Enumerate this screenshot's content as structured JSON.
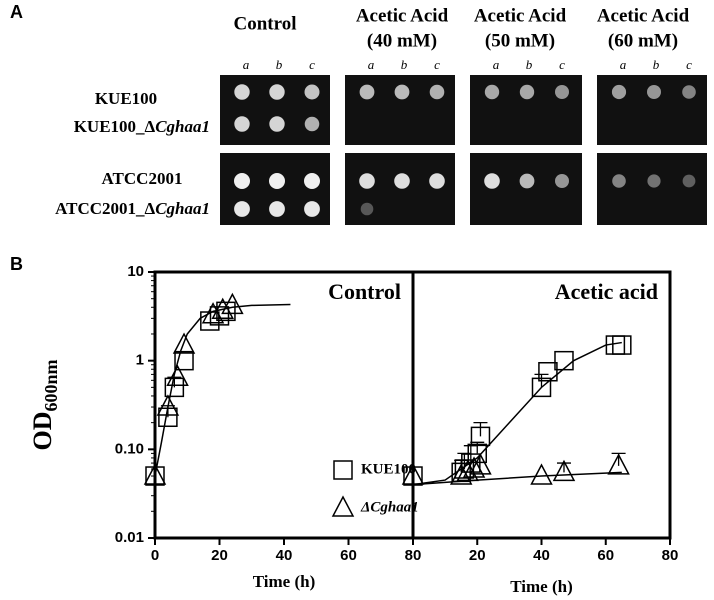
{
  "panel_a": {
    "label": "A",
    "columns": [
      {
        "title": "Control"
      },
      {
        "title": "Acetic Acid",
        "subtitle": "(40 mM)"
      },
      {
        "title": "Acetic Acid",
        "subtitle": "(50 mM)"
      },
      {
        "title": "Acetic Acid",
        "subtitle": "(60 mM)"
      }
    ],
    "dilutions": [
      "a",
      "b",
      "c"
    ],
    "rows": [
      {
        "name": "KUE100"
      },
      {
        "name": "KUE100_Δ",
        "italic": "Cghaa1"
      },
      {
        "name": "ATCC2001"
      },
      {
        "name": "ATCC2001_Δ",
        "italic": "Cghaa1"
      }
    ]
  },
  "panel_b": {
    "label": "B"
  },
  "chart_data": [
    {
      "type": "line",
      "title": "Control",
      "y_label": "OD",
      "y_label_sub": "600nm",
      "x_label": "Time (h)",
      "xlim": [
        0,
        80
      ],
      "xticks": [
        0,
        20,
        40,
        60,
        80
      ],
      "ylim": [
        0.01,
        10
      ],
      "yticks": [
        {
          "value": 10,
          "label": "10"
        },
        1,
        {
          "value": 0.1,
          "label": "0.10"
        },
        0.01
      ],
      "log_y": true,
      "legend": "lower right",
      "series": [
        {
          "name": "KUE100",
          "marker": "square",
          "color": "#000000",
          "x": [
            0,
            4,
            6,
            9,
            17,
            20,
            22
          ],
          "values": [
            0.05,
            0.23,
            0.5,
            1.0,
            2.8,
            3.2,
            3.6
          ],
          "errors": [
            null,
            0.08,
            0.15,
            null,
            null,
            null,
            null
          ]
        },
        {
          "name": "ΔCghaa1",
          "marker": "triangle",
          "color": "#000000",
          "x": [
            0,
            4,
            7,
            9,
            18,
            21,
            24
          ],
          "values": [
            0.05,
            0.3,
            0.65,
            1.5,
            3.3,
            3.7,
            4.2
          ],
          "errors": [
            null,
            null,
            null,
            null,
            null,
            null,
            null
          ]
        }
      ],
      "fit": {
        "x": [
          0,
          2,
          4,
          6,
          8,
          10,
          14,
          18,
          24,
          30,
          42
        ],
        "values": [
          0.05,
          0.12,
          0.3,
          0.7,
          1.3,
          2.0,
          3.0,
          3.6,
          4.0,
          4.2,
          4.3
        ]
      }
    },
    {
      "type": "line",
      "title": "Acetic acid",
      "x_label": "Time (h)",
      "xlim": [
        0,
        80
      ],
      "xticks": [
        20,
        40,
        60,
        80
      ],
      "ylim": [
        0.01,
        10
      ],
      "log_y": true,
      "series": [
        {
          "marker": "square",
          "color": "#000000",
          "x": [
            0,
            15,
            16,
            18,
            20,
            21,
            40,
            42,
            47,
            63,
            65
          ],
          "values": [
            0.05,
            0.055,
            0.06,
            0.07,
            0.09,
            0.14,
            0.5,
            0.75,
            1.0,
            1.5,
            1.5
          ],
          "errors": [
            null,
            0.02,
            0.03,
            0.04,
            0.03,
            0.06,
            0.2,
            null,
            null,
            null,
            null
          ]
        },
        {
          "marker": "triangle",
          "color": "#000000",
          "x": [
            0,
            15,
            17,
            19,
            21,
            40,
            47,
            64
          ],
          "values": [
            0.05,
            0.05,
            0.055,
            0.06,
            0.065,
            0.05,
            0.055,
            0.065
          ],
          "errors": [
            null,
            null,
            null,
            null,
            null,
            null,
            0.015,
            0.025
          ]
        }
      ],
      "fits": [
        {
          "x": [
            0,
            10,
            20,
            30,
            40,
            50,
            60,
            65
          ],
          "values": [
            0.04,
            0.045,
            0.08,
            0.2,
            0.5,
            1.0,
            1.5,
            1.6
          ]
        },
        {
          "x": [
            0,
            20,
            40,
            65
          ],
          "values": [
            0.04,
            0.045,
            0.05,
            0.055
          ]
        }
      ]
    }
  ]
}
